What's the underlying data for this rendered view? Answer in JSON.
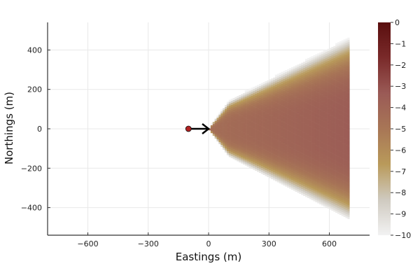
{
  "chart_data": {
    "type": "heatmap",
    "title": "",
    "xlabel": "Eastings (m)",
    "ylabel": "Northings (m)",
    "xlim": [
      -800,
      800
    ],
    "ylim": [
      -540,
      540
    ],
    "xticks": [
      -600,
      -300,
      0,
      300,
      600
    ],
    "xtick_labels": [
      "−600",
      "−300",
      "0",
      "300",
      "600"
    ],
    "yticks": [
      400,
      200,
      0,
      -200,
      -400
    ],
    "ytick_labels": [
      "400",
      "200",
      "0",
      "−200",
      "−400"
    ],
    "grid": true,
    "colorbar": {
      "range": [
        -10,
        0
      ],
      "ticks": [
        0,
        -1,
        -2,
        -3,
        -4,
        -5,
        -6,
        -7,
        -8,
        -9,
        -10
      ],
      "tick_labels": [
        "0",
        "−1",
        "−2",
        "−3",
        "−4",
        "−5",
        "−6",
        "−7",
        "−8",
        "−9",
        "−10"
      ],
      "colors": [
        "#f2f2f2",
        "#cfcac0",
        "#b99a5a",
        "#a87656",
        "#9a5a56",
        "#7a2a2a",
        "#5a0f0f"
      ]
    },
    "plume": {
      "source_x": 0,
      "source_y": 0,
      "max_x": 700,
      "half_width_at_100": 140,
      "half_width_at_700": 460,
      "center_level_near": -4.5,
      "center_level_far": -3.5,
      "edge_level": -10
    },
    "marker": {
      "x": -100,
      "y": 0,
      "color": "#b22222"
    },
    "arrow": {
      "from": [
        -100,
        0
      ],
      "to": [
        0,
        0
      ],
      "color": "#000000"
    }
  }
}
